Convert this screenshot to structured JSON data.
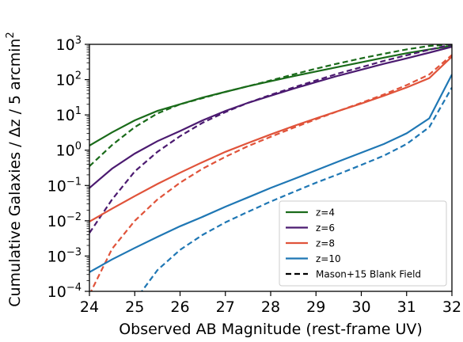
{
  "chart_data": {
    "type": "line",
    "xlabel": "Observed AB Magnitude (rest-frame UV)",
    "ylabel": "Cumulative Galaxies / Δz / 5 arcmin²",
    "xlim": [
      24,
      32
    ],
    "ylim": [
      0.0001,
      1000
    ],
    "yscale": "log",
    "x_ticks": [
      24,
      25,
      26,
      27,
      28,
      29,
      30,
      31,
      32
    ],
    "y_tick_exponents": [
      -4,
      -3,
      -2,
      -1,
      0,
      1,
      2,
      3
    ],
    "grid": false,
    "legend_position": "lower-right",
    "series": [
      {
        "name": "z=4",
        "color": "#1a6b1a",
        "style": "solid",
        "x": [
          24,
          24.5,
          25,
          25.5,
          26,
          26.5,
          27,
          27.5,
          28,
          28.5,
          29,
          29.5,
          30,
          30.5,
          31,
          31.5,
          32
        ],
        "y": [
          1.35,
          3.2,
          7,
          13,
          20,
          31,
          45,
          65,
          90,
          125,
          170,
          230,
          310,
          420,
          560,
          720,
          900
        ]
      },
      {
        "name": "z=4",
        "color": "#1a6b1a",
        "style": "dashed",
        "x": [
          24,
          24.5,
          25,
          25.5,
          26,
          26.5,
          27,
          27.5,
          28,
          28.5,
          29,
          29.5,
          30,
          30.5,
          31,
          31.5,
          32
        ],
        "y": [
          0.35,
          1.4,
          4.5,
          11,
          20,
          30,
          45,
          65,
          95,
          140,
          205,
          290,
          400,
          540,
          720,
          900,
          1000
        ]
      },
      {
        "name": "z=6",
        "color": "#4b1a70",
        "style": "solid",
        "x": [
          24,
          24.5,
          25,
          25.5,
          26,
          26.5,
          27,
          27.5,
          28,
          28.5,
          29,
          29.5,
          30,
          30.5,
          31,
          31.5,
          32
        ],
        "y": [
          0.085,
          0.3,
          0.8,
          1.8,
          3.5,
          7,
          13,
          22,
          35,
          55,
          85,
          130,
          190,
          280,
          400,
          580,
          850
        ]
      },
      {
        "name": "z=6",
        "color": "#4b1a70",
        "style": "dashed",
        "x": [
          24,
          24.5,
          25,
          25.5,
          26,
          26.5,
          27,
          27.5,
          28,
          28.5,
          29,
          29.5,
          30,
          30.5,
          31,
          31.5,
          32
        ],
        "y": [
          0.0045,
          0.04,
          0.25,
          0.9,
          2.5,
          6,
          12,
          22,
          37,
          60,
          95,
          150,
          225,
          340,
          490,
          700,
          1000
        ]
      },
      {
        "name": "z=8",
        "color": "#e0533a",
        "style": "solid",
        "x": [
          24,
          24.5,
          25,
          25.5,
          26,
          26.5,
          27,
          27.5,
          28,
          28.5,
          29,
          29.5,
          30,
          30.5,
          31,
          31.5,
          32
        ],
        "y": [
          0.0095,
          0.022,
          0.05,
          0.11,
          0.23,
          0.46,
          0.9,
          1.6,
          2.8,
          4.8,
          8,
          13,
          21,
          35,
          60,
          110,
          450
        ]
      },
      {
        "name": "z=8",
        "color": "#e0533a",
        "style": "dashed",
        "x": [
          24,
          24.5,
          25,
          25.5,
          26,
          26.5,
          27,
          27.5,
          28,
          28.5,
          29,
          29.5,
          30,
          30.5,
          31,
          31.5,
          32
        ],
        "y": [
          8e-05,
          0.0016,
          0.01,
          0.04,
          0.12,
          0.3,
          0.65,
          1.3,
          2.4,
          4.3,
          7.5,
          13,
          22,
          38,
          70,
          140,
          500
        ]
      },
      {
        "name": "z=10",
        "color": "#1f77b4",
        "style": "solid",
        "x": [
          24,
          24.5,
          25,
          25.5,
          26,
          26.5,
          27,
          27.5,
          28,
          28.5,
          29,
          29.5,
          30,
          30.5,
          31,
          31.5,
          32
        ],
        "y": [
          0.00035,
          0.0008,
          0.0017,
          0.0035,
          0.007,
          0.013,
          0.025,
          0.046,
          0.085,
          0.15,
          0.27,
          0.48,
          0.85,
          1.5,
          3.0,
          8,
          140
        ]
      },
      {
        "name": "Mason+15 Blank Field",
        "color": "#1f77b4",
        "style": "dashed",
        "x": [
          25.1,
          25.5,
          26,
          26.5,
          27,
          27.5,
          28,
          28.5,
          29,
          29.5,
          30,
          30.5,
          31,
          31.5,
          32
        ],
        "y": [
          8e-05,
          0.0004,
          0.0015,
          0.004,
          0.009,
          0.018,
          0.035,
          0.065,
          0.12,
          0.21,
          0.38,
          0.7,
          1.5,
          4.5,
          60
        ]
      }
    ],
    "legend": [
      {
        "label": "z=4",
        "color": "#1a6b1a",
        "style": "solid"
      },
      {
        "label": "z=6",
        "color": "#4b1a70",
        "style": "solid"
      },
      {
        "label": "z=8",
        "color": "#e0533a",
        "style": "solid"
      },
      {
        "label": "z=10",
        "color": "#1f77b4",
        "style": "solid"
      },
      {
        "label": "Mason+15 Blank Field",
        "color": "#000000",
        "style": "dashed"
      }
    ]
  }
}
